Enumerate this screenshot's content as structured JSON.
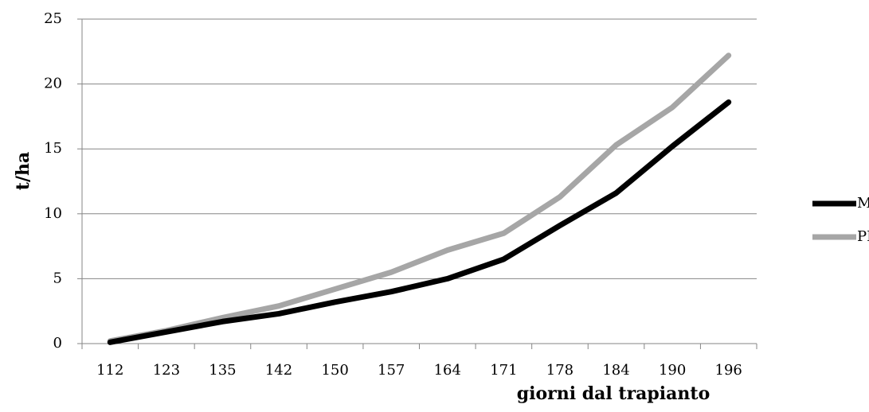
{
  "chart_data": {
    "type": "line",
    "x_label": "giorni dal trapianto",
    "y_label": "t/ha",
    "categories": [
      "112",
      "123",
      "135",
      "142",
      "150",
      "157",
      "164",
      "171",
      "178",
      "184",
      "190",
      "196"
    ],
    "series": [
      {
        "name": "MB",
        "color": "#000000",
        "values": [
          0.1,
          0.9,
          1.7,
          2.3,
          3.2,
          4.0,
          5.0,
          6.5,
          9.1,
          11.6,
          15.2,
          18.6
        ]
      },
      {
        "name": "PE",
        "color": "#a6a6a6",
        "values": [
          0.2,
          1.0,
          2.0,
          2.9,
          4.2,
          5.5,
          7.2,
          8.5,
          11.3,
          15.3,
          18.2,
          22.2
        ]
      }
    ],
    "ylim": [
      0,
      25
    ],
    "yticks": [
      0,
      5,
      10,
      15,
      20,
      25
    ],
    "grid": true,
    "legend": "right"
  }
}
